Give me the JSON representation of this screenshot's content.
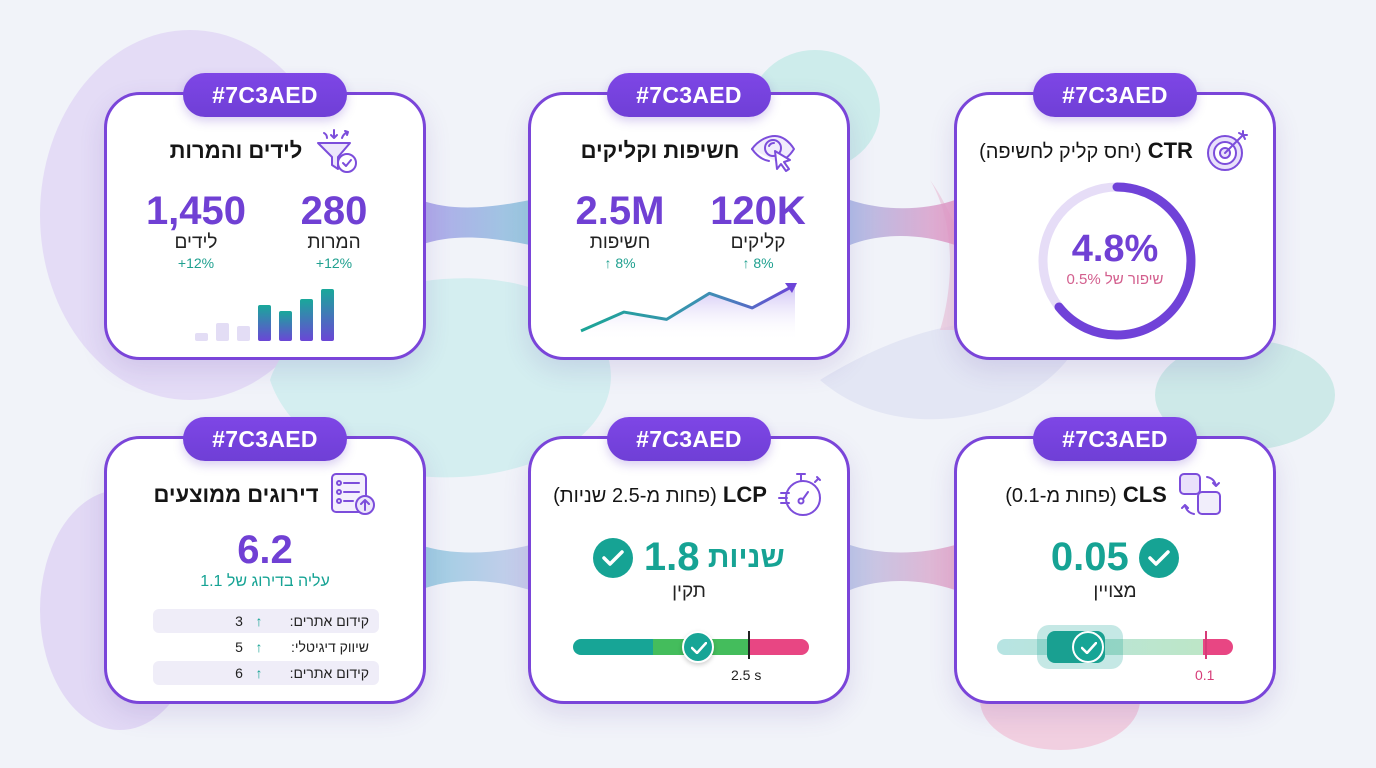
{
  "theme": {
    "accent": "#7C3AED",
    "card_border": "#7A45D9",
    "value_purple": "#7040D4",
    "positive_teal": "#16A394",
    "negative_pink": "#E5447E",
    "background": "#F1F3F9"
  },
  "cards": [
    {
      "id": "leads-conversions",
      "tag": "#7C3AED",
      "title": "לידים והמרות",
      "icon": "funnel-check-icon",
      "stats": [
        {
          "value": "280",
          "label": "המרות",
          "delta": "+12%"
        },
        {
          "value": "1,450",
          "label": "לידים",
          "delta": "+12%"
        }
      ],
      "mini_bars": [
        8,
        18,
        15,
        36,
        30,
        42,
        52
      ]
    },
    {
      "id": "impressions-clicks",
      "tag": "#7C3AED",
      "title": "חשיפות וקליקים",
      "icon": "eye-cursor-icon",
      "stats": [
        {
          "value": "120K",
          "label": "קליקים",
          "delta": "↑ 8%"
        },
        {
          "value": "2.5M",
          "label": "חשיפות",
          "delta": "↑ 8%"
        }
      ],
      "trend_line": [
        4,
        22,
        15,
        40,
        26,
        48
      ]
    },
    {
      "id": "ctr",
      "tag": "#7C3AED",
      "title_bold": "CTR",
      "title_sub": "(יחס קליק לחשיפה)",
      "icon": "target-arrow-icon",
      "value": "4.8%",
      "note": "שיפור של 0.5%"
    },
    {
      "id": "avg-rankings",
      "tag": "#7C3AED",
      "title": "דירוגים ממוצעים",
      "icon": "ranked-list-up-icon",
      "value": "6.2",
      "note": "עליה בדירוג של 1.1",
      "rows": [
        {
          "label": "קידום אתרים:",
          "value": "3"
        },
        {
          "label": "שיווק דיגיטלי:",
          "value": "5"
        },
        {
          "label": "קידום אתרים:",
          "value": "6"
        }
      ]
    },
    {
      "id": "lcp",
      "tag": "#7C3AED",
      "title_bold": "LCP",
      "title_sub": "(פחות מ-2.5 שניות)",
      "icon": "stopwatch-icon",
      "value": "1.8",
      "unit": "שניות",
      "status": "תקין",
      "threshold_label": "2.5 s"
    },
    {
      "id": "cls",
      "tag": "#7C3AED",
      "title_bold": "CLS",
      "title_sub": "(פחות מ-0.1)",
      "icon": "layout-shift-icon",
      "value": "0.05",
      "status": "מצויין",
      "threshold_label": "0.1"
    }
  ]
}
